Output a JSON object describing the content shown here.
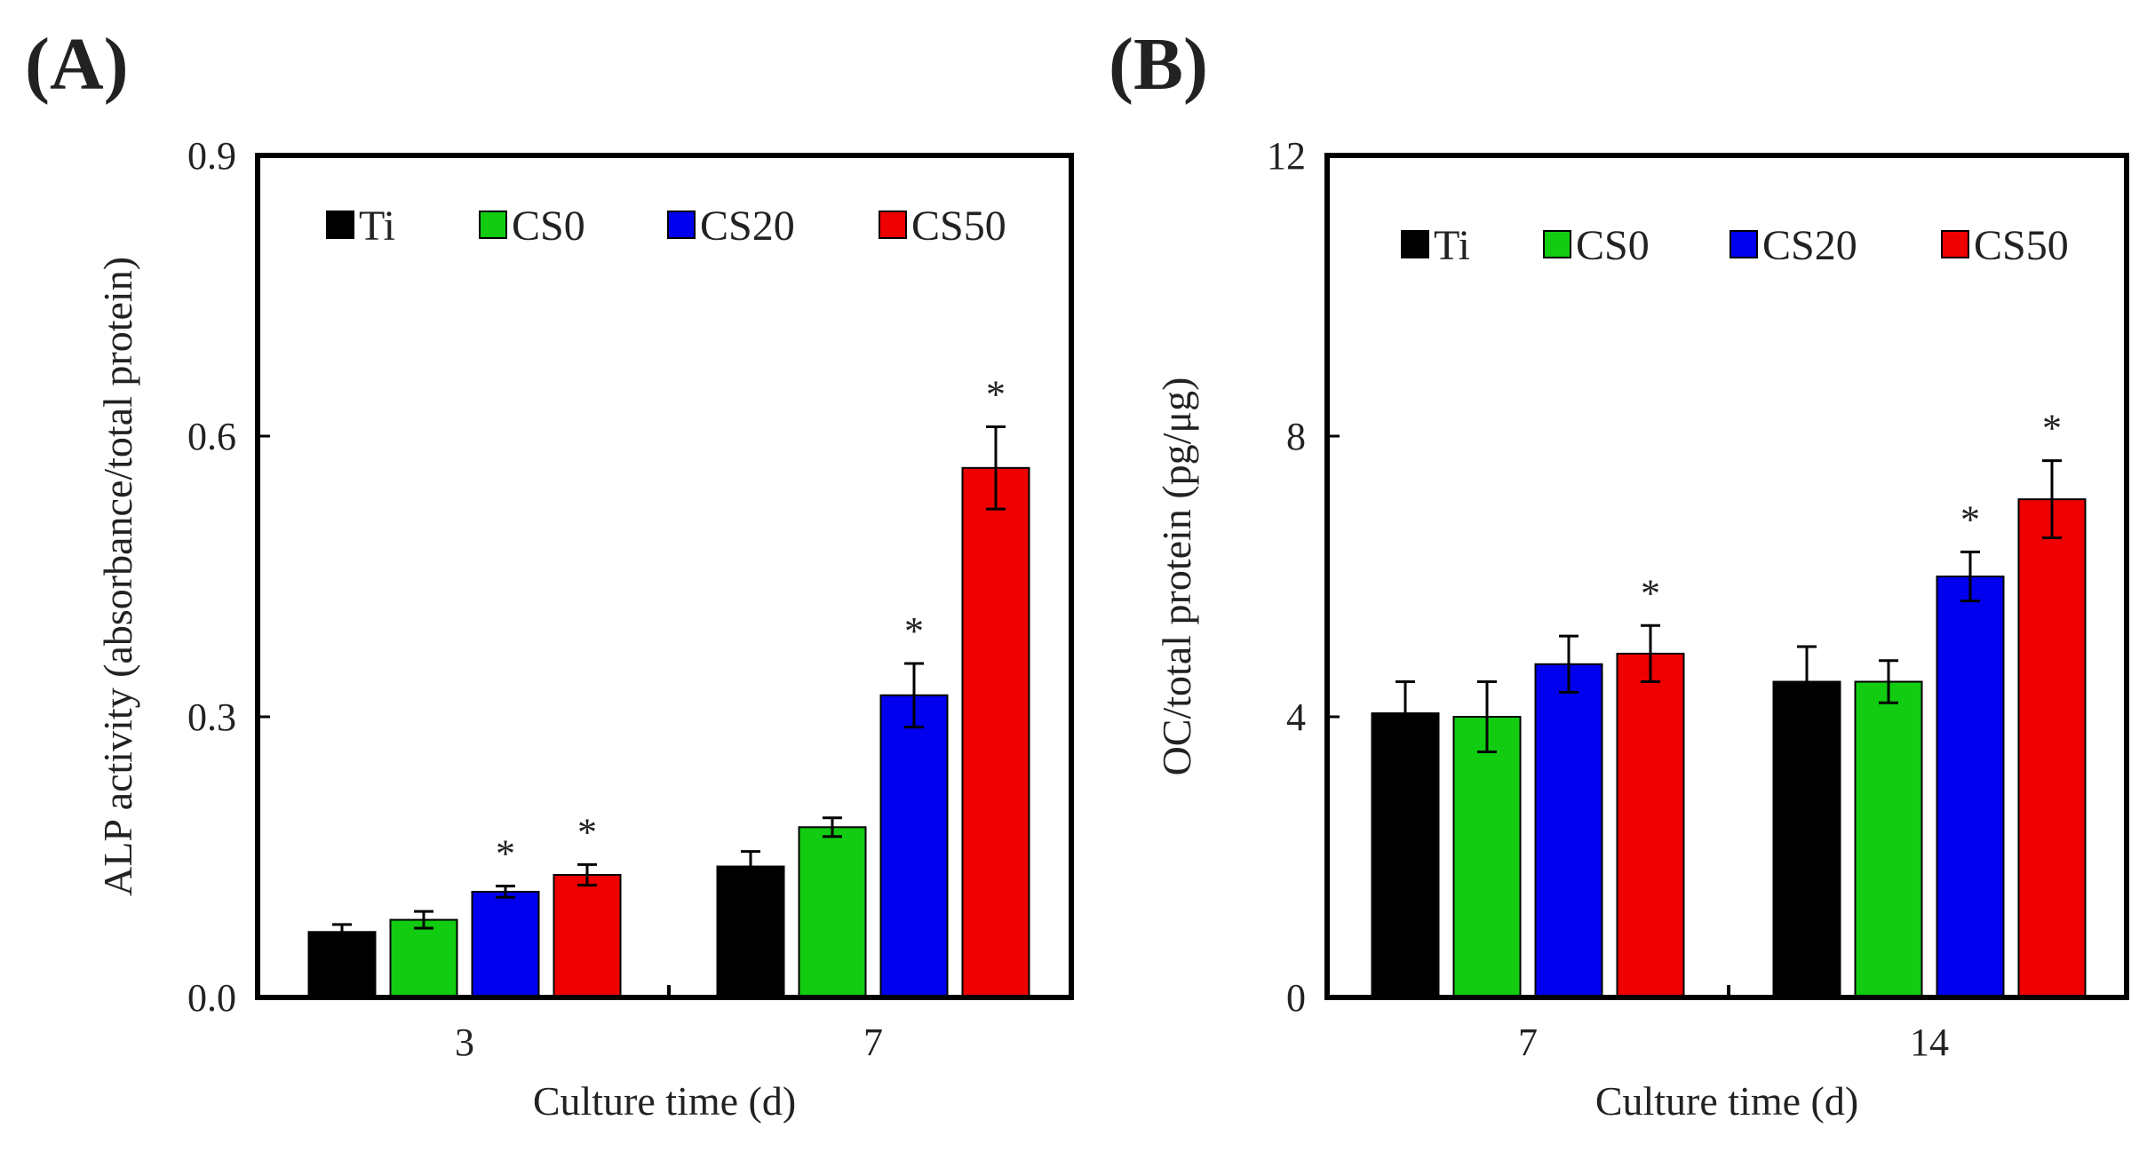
{
  "chart_data": [
    {
      "type": "bar",
      "panel_label": "(A)",
      "categories": [
        "3",
        "7"
      ],
      "series": [
        {
          "name": "Ti",
          "color": "#000000",
          "values": [
            0.07,
            0.14
          ],
          "errors": [
            0.008,
            0.016
          ],
          "significant": [
            false,
            false
          ]
        },
        {
          "name": "CS0",
          "color": "#11cc11",
          "values": [
            0.083,
            0.182
          ],
          "errors": [
            0.009,
            0.01
          ],
          "significant": [
            false,
            false
          ]
        },
        {
          "name": "CS20",
          "color": "#0000ee",
          "values": [
            0.113,
            0.323
          ],
          "errors": [
            0.006,
            0.034
          ],
          "significant": [
            true,
            true
          ]
        },
        {
          "name": "CS50",
          "color": "#ee0000",
          "values": [
            0.131,
            0.566
          ],
          "errors": [
            0.011,
            0.044
          ],
          "significant": [
            true,
            true
          ]
        }
      ],
      "significance_marker": "*",
      "xlabel": "Culture time (d)",
      "ylabel": "ALP activity (absorbance/total protein)",
      "ylim": [
        0,
        0.9
      ],
      "yticks": [
        "0.0",
        "0.3",
        "0.6",
        "0.9"
      ],
      "legend_position": "top"
    },
    {
      "type": "bar",
      "panel_label": "(B)",
      "categories": [
        "7",
        "14"
      ],
      "series": [
        {
          "name": "Ti",
          "color": "#000000",
          "values": [
            4.05,
            4.5
          ],
          "errors": [
            0.45,
            0.5
          ],
          "significant": [
            false,
            false
          ]
        },
        {
          "name": "CS0",
          "color": "#11cc11",
          "values": [
            4.0,
            4.5
          ],
          "errors": [
            0.5,
            0.3
          ],
          "significant": [
            false,
            false
          ]
        },
        {
          "name": "CS20",
          "color": "#0000ee",
          "values": [
            4.75,
            6.0
          ],
          "errors": [
            0.4,
            0.35
          ],
          "significant": [
            false,
            true
          ]
        },
        {
          "name": "CS50",
          "color": "#ee0000",
          "values": [
            4.9,
            7.1
          ],
          "errors": [
            0.4,
            0.55
          ],
          "significant": [
            true,
            true
          ]
        }
      ],
      "significance_marker": "*",
      "xlabel": "Culture time (d)",
      "ylabel": "OC/total protein (pg/μg)",
      "ylim": [
        0,
        12
      ],
      "yticks": [
        "0",
        "4",
        "8",
        "12"
      ],
      "legend_position": "top"
    }
  ]
}
